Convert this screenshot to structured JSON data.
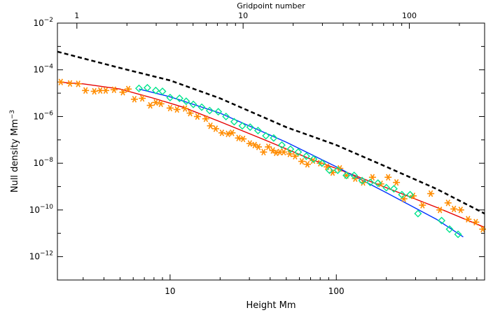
{
  "chart_data": {
    "type": "scatter",
    "title": "",
    "xlabel": "Height Mm",
    "ylabel": "Null density Mm",
    "ylabel_exponent": "−3",
    "top_xlabel": "Gridpoint number",
    "xscale": "log",
    "yscale": "log",
    "xlim": [
      2.1,
      780
    ],
    "ylim": [
      1e-13,
      0.01
    ],
    "x_ticks": [
      10,
      100
    ],
    "x_tick_labels": [
      "10",
      "100"
    ],
    "y_ticks": [
      1e-12,
      1e-10,
      1e-08,
      1e-06,
      0.0001,
      0.01
    ],
    "y_tick_labels": [
      {
        "base": "10",
        "exp": "−12"
      },
      {
        "base": "10",
        "exp": "−10"
      },
      {
        "base": "10",
        "exp": "−8"
      },
      {
        "base": "10",
        "exp": "−6"
      },
      {
        "base": "10",
        "exp": "−4"
      },
      {
        "base": "10",
        "exp": "−2"
      }
    ],
    "top_ticks": [
      {
        "label": "1",
        "height": 2.75
      },
      {
        "label": "10",
        "height": 27.5
      },
      {
        "label": "100",
        "height": 275
      }
    ],
    "grid": false,
    "series": [
      {
        "kind": "points",
        "marker": "asterisk",
        "color": "#ff8c00",
        "x": [
          2.2,
          2.5,
          2.8,
          3.1,
          3.5,
          3.8,
          4.1,
          4.6,
          5.2,
          5.6,
          6.1,
          6.8,
          7.6,
          8.2,
          8.8,
          10.0,
          11.0,
          12.3,
          13.2,
          14.6,
          16.4,
          17.5,
          18.8,
          20.5,
          22.3,
          23.6,
          25.8,
          27.5,
          30.2,
          32.3,
          34.0,
          36.5,
          39.0,
          41.5,
          43.4,
          45.8,
          48.3,
          52.5,
          56.5,
          62.0,
          67.0,
          72.5,
          80.0,
          88.0,
          95.0,
          105.0,
          115.0,
          130.0,
          145.0,
          165.0,
          185.0,
          205.0,
          230.0,
          255.0,
          290.0,
          330.0,
          370.0,
          420.0,
          470.0,
          510.0,
          560.0,
          620.0,
          690.0,
          760.0
        ],
        "y": [
          3e-05,
          2.6e-05,
          2.5e-05,
          1.3e-05,
          1.2e-05,
          1.3e-05,
          1.3e-05,
          1.4e-05,
          1.1e-05,
          1.5e-05,
          5.5e-06,
          6e-06,
          3e-06,
          4e-06,
          3.5e-06,
          2.3e-06,
          2e-06,
          2.2e-06,
          1.4e-06,
          1e-06,
          8e-07,
          4e-07,
          3e-07,
          2e-07,
          1.8e-07,
          2e-07,
          1.2e-07,
          1.1e-07,
          7e-08,
          6e-08,
          5e-08,
          3e-08,
          5e-08,
          3.5e-08,
          2.8e-08,
          3e-08,
          3e-08,
          2.5e-08,
          2e-08,
          1.2e-08,
          9e-09,
          1.3e-08,
          1e-08,
          7e-09,
          4e-09,
          6e-09,
          3e-09,
          2.2e-09,
          1.5e-09,
          2.5e-09,
          1.3e-09,
          2.5e-09,
          1.5e-09,
          3e-10,
          4e-10,
          1.6e-10,
          5e-10,
          1e-10,
          2e-10,
          1.1e-10,
          1e-10,
          4e-11,
          3e-11,
          1.5e-11
        ]
      },
      {
        "kind": "points",
        "marker": "diamond",
        "color": "#00e58c",
        "x": [
          6.5,
          7.3,
          8.2,
          9.0,
          10.0,
          11.4,
          12.5,
          13.8,
          15.5,
          17.3,
          19.5,
          21.7,
          24.3,
          27.2,
          30.3,
          33.8,
          37.7,
          42.0,
          47.0,
          53.0,
          59.0,
          66.0,
          73.0,
          82.0,
          91.0,
          102.0,
          115.0,
          128.0,
          143.0,
          160.0,
          178.0,
          200.0,
          222.0,
          248.0,
          278.0,
          310.0,
          430.0,
          480.0,
          540.0
        ],
        "y": [
          1.6e-05,
          1.7e-05,
          1.3e-05,
          1.2e-05,
          6.5e-06,
          6e-06,
          4.5e-06,
          3.3e-06,
          2.5e-06,
          1.8e-06,
          1.6e-06,
          1e-06,
          6e-07,
          4e-07,
          3.5e-07,
          2.5e-07,
          1.5e-07,
          1.2e-07,
          6e-08,
          4e-08,
          3e-08,
          2e-08,
          1.5e-08,
          1e-08,
          5e-09,
          5e-09,
          3e-09,
          3e-09,
          1.8e-09,
          1.5e-09,
          1.4e-09,
          9e-10,
          8e-10,
          4.5e-10,
          4.5e-10,
          7e-11,
          3.5e-11,
          1.5e-11,
          9e-12
        ]
      }
    ],
    "lines": [
      {
        "style": "dashed",
        "color": "#000000",
        "x": [
          2.1,
          5,
          10,
          20,
          50,
          100,
          200,
          400,
          780
        ],
        "y": [
          0.0006,
          0.00012,
          3.5e-05,
          6e-06,
          3.5e-07,
          6e-08,
          7e-09,
          8e-10,
          7e-11
        ]
      },
      {
        "style": "solid",
        "color": "#e60000",
        "x": [
          2.1,
          3,
          5,
          8,
          12,
          20,
          40,
          70,
          100,
          200,
          400,
          780
        ],
        "y": [
          3e-05,
          2.5e-05,
          1.5e-05,
          6e-06,
          2.5e-06,
          6e-07,
          8e-08,
          1.5e-08,
          6e-09,
          9e-10,
          1.3e-10,
          1.8e-11
        ]
      },
      {
        "style": "solid",
        "color": "#0033ff",
        "x": [
          6.5,
          10,
          20,
          50,
          100,
          200,
          400,
          580
        ],
        "y": [
          1.5e-05,
          7e-06,
          1.4e-06,
          8e-08,
          7e-09,
          5.5e-10,
          4e-11,
          7e-12
        ]
      }
    ]
  }
}
